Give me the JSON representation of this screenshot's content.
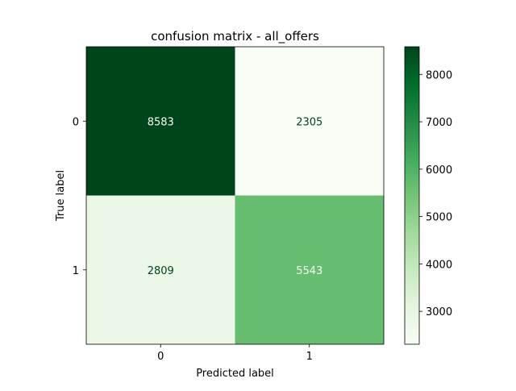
{
  "chart_data": {
    "type": "heatmap",
    "title": "confusion matrix - all_offers",
    "xlabel": "Predicted label",
    "ylabel": "True label",
    "x_categories": [
      "0",
      "1"
    ],
    "y_categories": [
      "0",
      "1"
    ],
    "matrix": [
      [
        8583,
        2305
      ],
      [
        2809,
        5543
      ]
    ],
    "colormap": "Greens",
    "color_range": [
      2305,
      8583
    ],
    "colorbar_ticks": [
      "3000",
      "4000",
      "5000",
      "6000",
      "7000",
      "8000"
    ],
    "cell_colors": [
      [
        "#00441b",
        "#f7fcf5"
      ],
      [
        "#ebf7e7",
        "#66bd6f"
      ]
    ],
    "cell_text_colors": [
      [
        "#f7fcf5",
        "#00441b"
      ],
      [
        "#00441b",
        "#f7fcf5"
      ]
    ],
    "grid": false
  }
}
